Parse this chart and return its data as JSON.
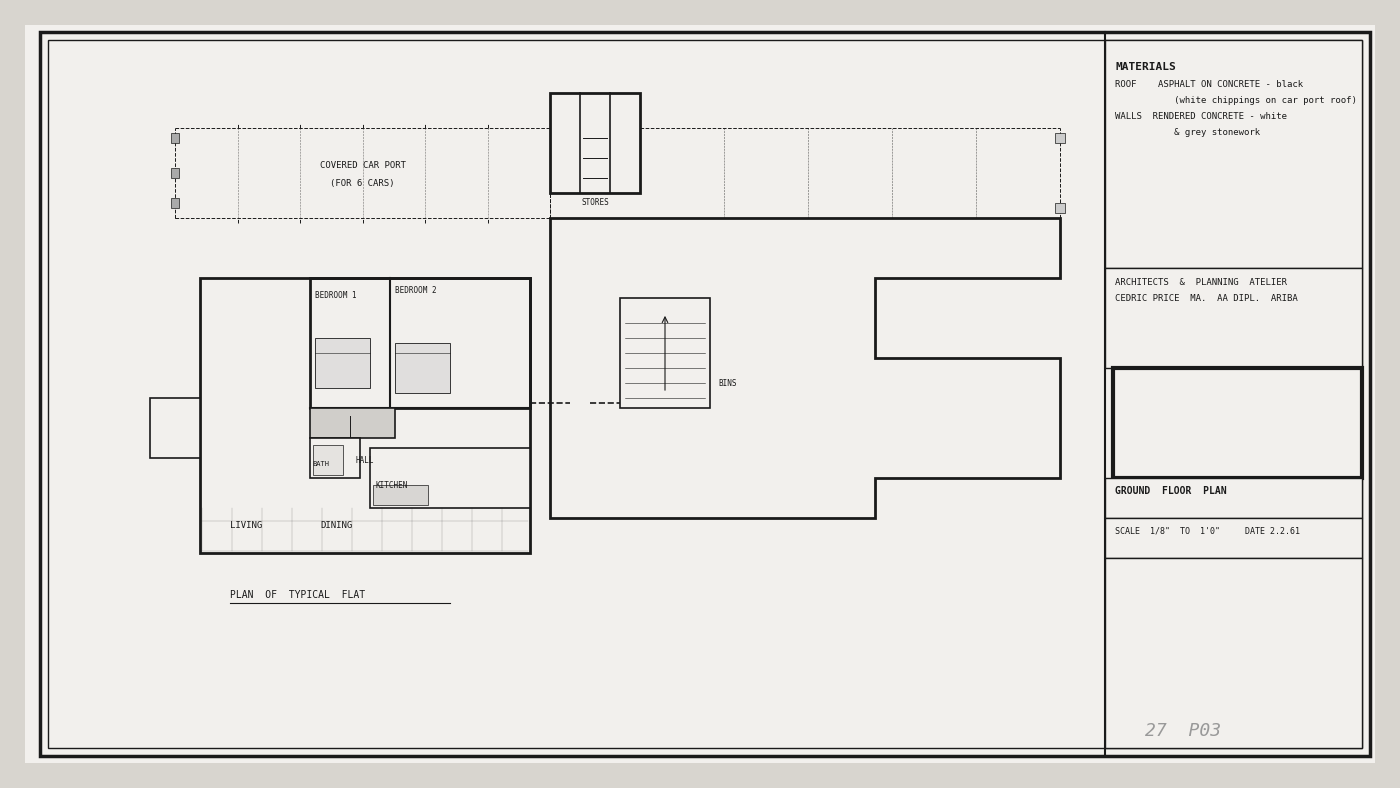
{
  "bg_color": "#d8d5cf",
  "paper_color": "#f2f0ed",
  "line_color": "#1a1a1a",
  "title_text": "GROUND  FLOOR  PLAN",
  "scale_text": "SCALE  1/8\"  TO  1'0\"     DATE 2.2.61",
  "drawing_number": "27  P03",
  "plan_label": "PLAN  OF  TYPICAL  FLAT",
  "firm_line1": "ARCHITECTS  &  PLANNING  ATELIER",
  "firm_line2": "CEDRIC PRICE  MA.  AA DIPL.  ARIBA",
  "materials_title": "MATERIALS",
  "materials_line1": "ROOF    ASPHALT ON CONCRETE - black",
  "materials_line2": "           (white chippings on car port roof)",
  "materials_line3": "WALLS  RENDERED CONCRETE - white",
  "materials_line4": "           & grey stonework"
}
